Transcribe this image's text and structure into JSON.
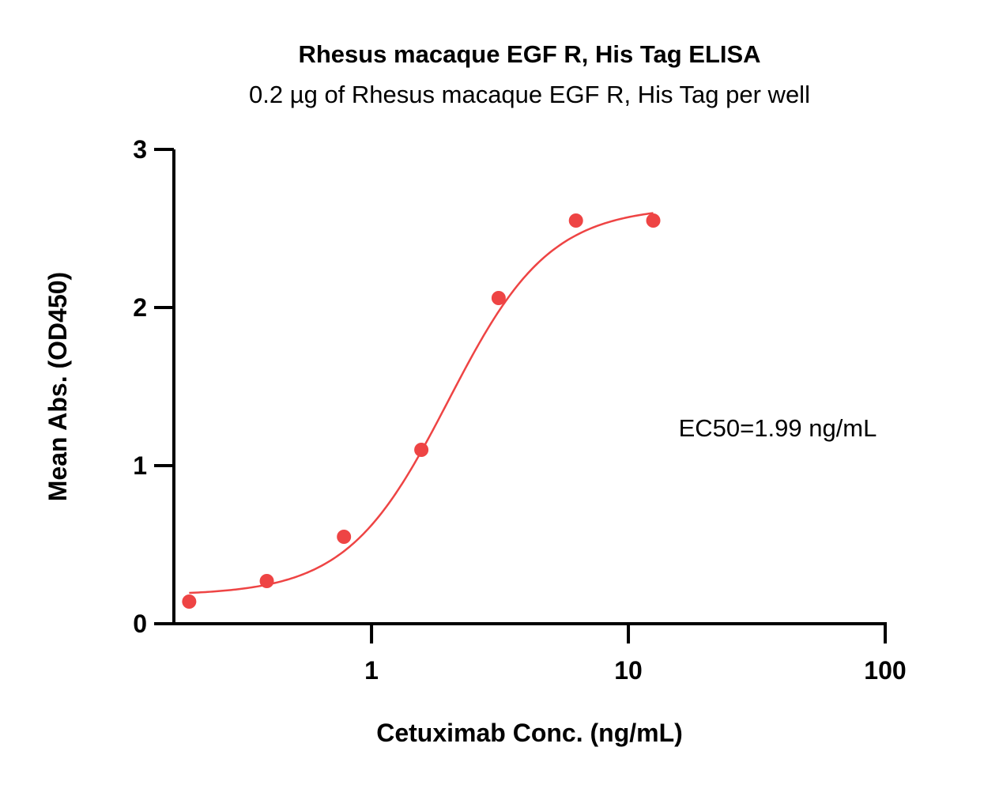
{
  "chart_data": {
    "type": "scatter",
    "title": "Rhesus macaque EGF R, His Tag ELISA",
    "subtitle": "0.2 µg of Rhesus macaque EGF R, His Tag per well",
    "xlabel": "Cetuximab Conc. (ng/mL)",
    "ylabel": "Mean Abs. (OD450)",
    "x_scale": "log",
    "xlim": [
      0.17,
      100
    ],
    "ylim": [
      0,
      3
    ],
    "x_ticks": [
      1,
      10,
      100
    ],
    "x_tick_labels": [
      "1",
      "10",
      "100"
    ],
    "y_ticks": [
      0,
      1,
      2,
      3
    ],
    "y_tick_labels": [
      "0",
      "1",
      "2",
      "3"
    ],
    "grid": false,
    "color": "#ee4444",
    "series": [
      {
        "x": [
          0.195,
          0.391,
          0.781,
          1.563,
          3.125,
          6.25,
          12.5
        ],
        "y": [
          0.14,
          0.27,
          0.55,
          1.1,
          2.06,
          2.55,
          2.55
        ]
      }
    ],
    "fit_curve": {
      "model": "4PL",
      "bottom": 0.18,
      "top": 2.64,
      "ec50": 1.99,
      "hill": 2.2,
      "x_range": [
        0.195,
        12.5
      ]
    },
    "annotation": "EC50=1.99 ng/mL"
  }
}
